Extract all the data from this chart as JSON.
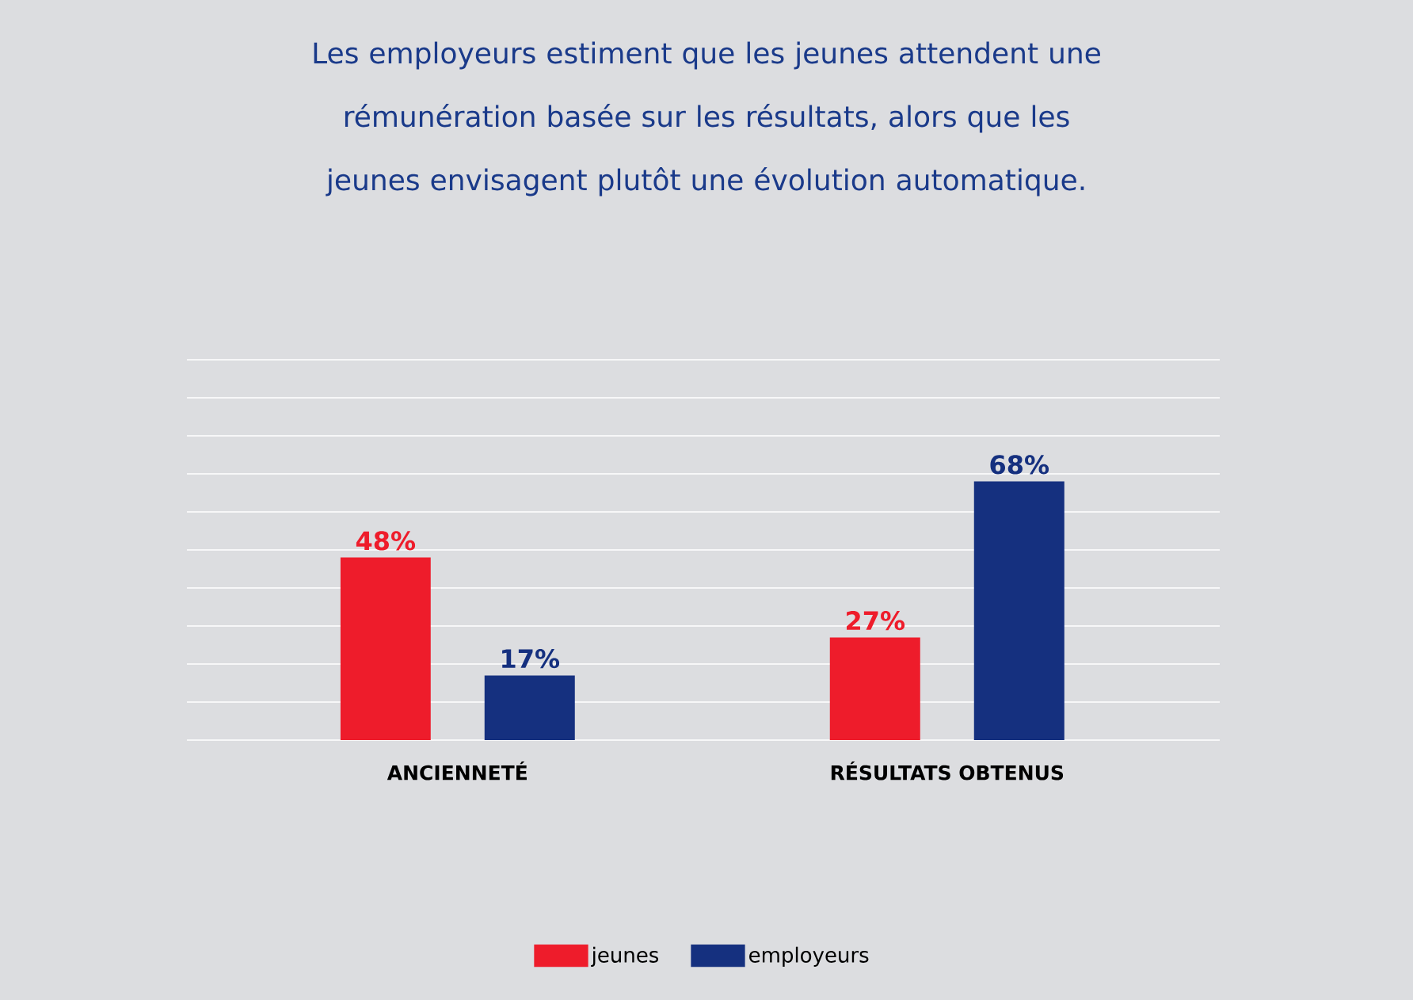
{
  "chart_data": {
    "type": "bar",
    "title": "Les employeurs estiment que les jeunes attendent une rémunération basée sur les résultats, alors que les jeunes envisagent plutôt une évolution automatique.",
    "categories": [
      "ANCIENNETÉ",
      "RÉSULTATS OBTENUS"
    ],
    "series": [
      {
        "name": "jeunes",
        "color": "#ee1c2b",
        "values": [
          48,
          27
        ],
        "value_labels": [
          "48%",
          "27%"
        ]
      },
      {
        "name": "employeurs",
        "color": "#15307f",
        "values": [
          17,
          68
        ],
        "value_labels": [
          "17%",
          "68%"
        ]
      }
    ],
    "ylim": [
      0,
      100
    ],
    "yticks": [
      {
        "value": 0,
        "label": null
      },
      {
        "value": 10,
        "label": null
      },
      {
        "value": 20,
        "label": null
      },
      {
        "value": 30,
        "label": null
      },
      {
        "value": 40,
        "label": null
      },
      {
        "value": 50,
        "label": null
      },
      {
        "value": 60,
        "label": null
      },
      {
        "value": 70,
        "label": null
      },
      {
        "value": 80,
        "label": null
      },
      {
        "value": 90,
        "label": null
      },
      {
        "value": 100,
        "label": null
      }
    ],
    "grid": "y",
    "legend": "bottom",
    "tick_labels": "x"
  }
}
